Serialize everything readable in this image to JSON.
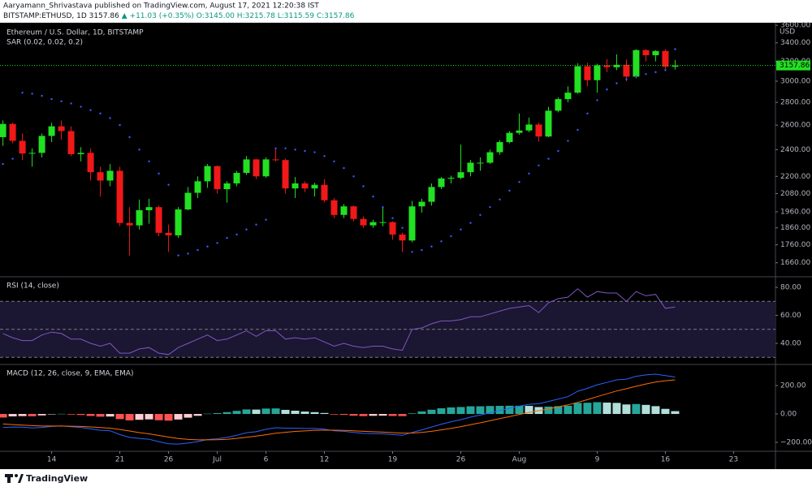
{
  "header": {
    "author_line": "Aaryamann_Shrivastava published on TradingView.com, August 17, 2021 12:20:38 IST",
    "symbol": "BITSTAMP:ETHUSD, 1D",
    "last": "3157.86",
    "change": "▲ +11.03 (+0.35%)",
    "ohlc": [
      "O:3145.00",
      "H:3215.78",
      "L:3115.59",
      "C:3157.86"
    ],
    "footer": "TradingView"
  },
  "chart_data": [
    {
      "type": "candlestick",
      "title": "Ethereum / U.S. Dollar, 1D, BITSTAMP",
      "ylabel": "USD",
      "log_scale": true,
      "grid": false,
      "up_color": "#22e022",
      "down_color": "#f01818",
      "ylim": [
        1590,
        3630
      ],
      "yticks": [
        {
          "value": 3600,
          "label": "3600.00"
        },
        {
          "value": 3400,
          "label": "3400.00"
        },
        {
          "value": 3200,
          "label": "3200.00"
        },
        {
          "value": 3000,
          "label": "3000.00"
        },
        {
          "value": 2800,
          "label": "2800.00"
        },
        {
          "value": 2600,
          "label": "2600.00"
        },
        {
          "value": 2400,
          "label": "2400.00"
        },
        {
          "value": 2200,
          "label": "2200.00"
        },
        {
          "value": 2080,
          "label": "2080.00"
        },
        {
          "value": 1960,
          "label": "1960.00"
        },
        {
          "value": 1860,
          "label": "1860.00"
        },
        {
          "value": 1760,
          "label": "1760.00"
        },
        {
          "value": 1660,
          "label": "1660.00"
        }
      ],
      "open": [
        2500,
        2610,
        2470,
        2370,
        2375,
        2510,
        2590,
        2550,
        2365,
        2375,
        2230,
        2170,
        2240,
        1890,
        1875,
        1970,
        1990,
        1830,
        1815,
        1975,
        2085,
        2165,
        2275,
        2110,
        2150,
        2225,
        2325,
        2200,
        2325,
        2320,
        2115,
        2150,
        2115,
        2140,
        2035,
        1940,
        1995,
        1915,
        1875,
        1895,
        1895,
        1820,
        1785,
        1995,
        2025,
        2125,
        2185,
        2190,
        2230,
        2300,
        2300,
        2380,
        2460,
        2535,
        2555,
        2605,
        2505,
        2725,
        2830,
        2890,
        3150,
        3010,
        3160,
        3140,
        3165,
        3045,
        3320,
        3265,
        3310,
        3145
      ],
      "high": [
        2640,
        2620,
        2530,
        2410,
        2530,
        2620,
        2640,
        2590,
        2420,
        2410,
        2270,
        2290,
        2270,
        1990,
        2040,
        2045,
        2000,
        1880,
        1990,
        2125,
        2200,
        2290,
        2280,
        2165,
        2240,
        2350,
        2330,
        2340,
        2410,
        2330,
        2195,
        2165,
        2155,
        2180,
        2050,
        2010,
        2000,
        1930,
        1910,
        1990,
        1900,
        1830,
        2030,
        2045,
        2150,
        2195,
        2205,
        2440,
        2320,
        2340,
        2400,
        2475,
        2550,
        2700,
        2665,
        2620,
        2760,
        2845,
        2950,
        3180,
        3185,
        3175,
        3225,
        3275,
        3220,
        3330,
        3330,
        3320,
        3330,
        3215.78
      ],
      "low": [
        2430,
        2450,
        2320,
        2270,
        2340,
        2460,
        2480,
        2350,
        2310,
        2170,
        2060,
        2130,
        1870,
        1700,
        1850,
        1885,
        1810,
        1720,
        1800,
        1970,
        2050,
        2120,
        2080,
        2020,
        2130,
        2210,
        2180,
        2190,
        2310,
        2080,
        2050,
        2090,
        2060,
        2020,
        1920,
        1920,
        1900,
        1860,
        1860,
        1870,
        1790,
        1720,
        1775,
        1955,
        2000,
        2110,
        2150,
        2180,
        2200,
        2240,
        2290,
        2360,
        2450,
        2520,
        2540,
        2465,
        2500,
        2710,
        2800,
        2880,
        2950,
        2890,
        3090,
        3110,
        3000,
        3030,
        3200,
        3200,
        3110,
        3115.59
      ],
      "close": [
        2610,
        2470,
        2370,
        2375,
        2510,
        2590,
        2550,
        2365,
        2375,
        2230,
        2170,
        2240,
        1890,
        1875,
        1970,
        1990,
        1830,
        1815,
        1975,
        2085,
        2165,
        2275,
        2110,
        2150,
        2225,
        2325,
        2200,
        2325,
        2320,
        2115,
        2150,
        2115,
        2140,
        2035,
        1940,
        1995,
        1915,
        1875,
        1895,
        1895,
        1820,
        1785,
        1995,
        2025,
        2125,
        2185,
        2190,
        2230,
        2300,
        2300,
        2380,
        2460,
        2535,
        2555,
        2605,
        2505,
        2725,
        2830,
        2890,
        3150,
        3010,
        3160,
        3140,
        3165,
        3045,
        3320,
        3265,
        3310,
        3145,
        3157.86
      ],
      "series": [
        {
          "name": "SAR (0.02, 0.02, 0.2)",
          "color": "#3d5afe",
          "values": [
            2290,
            2330,
            2890,
            2880,
            2860,
            2830,
            2810,
            2790,
            2760,
            2730,
            2700,
            2660,
            2600,
            2500,
            2400,
            2310,
            2220,
            2140,
            1700,
            1710,
            1730,
            1750,
            1770,
            1800,
            1820,
            1850,
            1880,
            1910,
            2410,
            2410,
            2400,
            2390,
            2380,
            2350,
            2310,
            2260,
            2200,
            2130,
            2060,
            1990,
            1920,
            1860,
            1720,
            1730,
            1750,
            1780,
            1810,
            1850,
            1890,
            1940,
            1990,
            2040,
            2100,
            2160,
            2220,
            2280,
            2330,
            2390,
            2470,
            2560,
            2700,
            2820,
            2920,
            2980,
            3020,
            3050,
            3070,
            3090,
            3110,
            3330
          ]
        }
      ]
    },
    {
      "type": "line",
      "title": "RSI (14, close)",
      "band_color": "#1b1631",
      "level_color": "#787b86",
      "ylim": [
        25.5,
        87
      ],
      "levels": [
        70,
        50,
        30
      ],
      "yticks": [
        {
          "value": 80,
          "label": "80.00"
        },
        {
          "value": 60,
          "label": "60.00"
        },
        {
          "value": 40,
          "label": "40.00"
        }
      ],
      "series": [
        {
          "color": "#7e57c2",
          "values": [
            47,
            44,
            42,
            42,
            46,
            48,
            47,
            43,
            43,
            40,
            38,
            40,
            33,
            33,
            36,
            37,
            33,
            32,
            37,
            40,
            43,
            46,
            42,
            43,
            46,
            49,
            45,
            49,
            49,
            43,
            44,
            43,
            44,
            41,
            38,
            40,
            38,
            37,
            38,
            38,
            36,
            35,
            50,
            51,
            54,
            56,
            56,
            57,
            59,
            59,
            61,
            63,
            65,
            66,
            67,
            62,
            69,
            72,
            73,
            79,
            73,
            77,
            76,
            76,
            70,
            77,
            74,
            75,
            65,
            66
          ]
        }
      ]
    },
    {
      "type": "macd",
      "title": "MACD (12, 26, close, 9, EMA, EMA)",
      "ylim": [
        -257,
        343
      ],
      "yticks": [
        {
          "value": 200,
          "label": "200.00"
        },
        {
          "value": 0,
          "label": "0.00"
        },
        {
          "value": -200,
          "label": "−200.00"
        }
      ],
      "xlim": [
        -0.3,
        79.3
      ],
      "xticks": [
        {
          "value": 5,
          "label": "14"
        },
        {
          "value": 12,
          "label": "21"
        },
        {
          "value": 17,
          "label": "26"
        },
        {
          "value": 22,
          "label": "Jul"
        },
        {
          "value": 27,
          "label": "6"
        },
        {
          "value": 33,
          "label": "12"
        },
        {
          "value": 40,
          "label": "19"
        },
        {
          "value": 47,
          "label": "26"
        },
        {
          "value": 53,
          "label": "Aug"
        },
        {
          "value": 61,
          "label": "9"
        },
        {
          "value": 68,
          "label": "16"
        },
        {
          "value": 75,
          "label": "23"
        }
      ],
      "series": [
        {
          "color": "#2962ff",
          "values": [
            -95,
            -92,
            -93,
            -98,
            -95,
            -88,
            -84,
            -90,
            -95,
            -105,
            -115,
            -118,
            -145,
            -165,
            -172,
            -178,
            -195,
            -210,
            -212,
            -205,
            -195,
            -180,
            -175,
            -165,
            -150,
            -132,
            -125,
            -108,
            -97,
            -100,
            -100,
            -102,
            -102,
            -107,
            -118,
            -122,
            -130,
            -137,
            -138,
            -140,
            -145,
            -150,
            -130,
            -112,
            -92,
            -72,
            -55,
            -40,
            -22,
            -8,
            8,
            24,
            40,
            55,
            68,
            72,
            88,
            105,
            122,
            160,
            180,
            205,
            222,
            240,
            245,
            265,
            275,
            280,
            270,
            260
          ]
        },
        {
          "color": "#ff6d00",
          "values": [
            -70,
            -75,
            -78,
            -82,
            -85,
            -85,
            -85,
            -86,
            -88,
            -91,
            -96,
            -100,
            -109,
            -120,
            -131,
            -140,
            -151,
            -163,
            -173,
            -179,
            -182,
            -182,
            -181,
            -178,
            -172,
            -164,
            -156,
            -146,
            -136,
            -129,
            -123,
            -119,
            -115,
            -114,
            -114,
            -116,
            -118,
            -122,
            -125,
            -128,
            -131,
            -135,
            -134,
            -130,
            -122,
            -112,
            -101,
            -89,
            -76,
            -62,
            -48,
            -33,
            -18,
            -3,
            11,
            23,
            36,
            50,
            64,
            82,
            101,
            122,
            142,
            162,
            178,
            195,
            211,
            225,
            234,
            240
          ]
        }
      ],
      "histogram": {
        "colors": {
          "up_rising": "#26a69a",
          "up_falling": "#b2dfdb",
          "down_falling": "#ff5252",
          "down_rising": "#ffcdd2"
        },
        "values": [
          -25,
          -17,
          -15,
          -16,
          -10,
          -3,
          1,
          -4,
          -7,
          -14,
          -19,
          -18,
          -36,
          -45,
          -41,
          -38,
          -44,
          -47,
          -39,
          -26,
          -13,
          2,
          6,
          13,
          22,
          32,
          31,
          38,
          39,
          29,
          23,
          17,
          13,
          7,
          -4,
          -6,
          -12,
          -15,
          -13,
          -12,
          -14,
          -15,
          4,
          18,
          30,
          40,
          46,
          49,
          54,
          54,
          56,
          57,
          58,
          58,
          57,
          49,
          52,
          55,
          58,
          78,
          79,
          83,
          80,
          78,
          67,
          70,
          64,
          55,
          36,
          20
        ]
      }
    }
  ]
}
